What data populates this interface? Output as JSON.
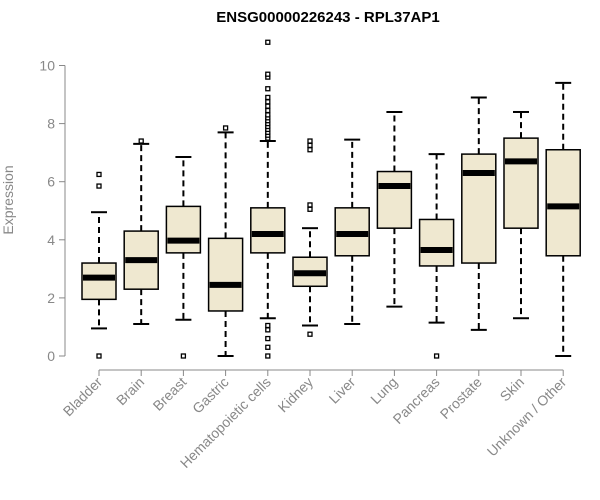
{
  "chart_data": {
    "type": "boxplot",
    "title": "ENSG00000226243 - RPL37AP1",
    "xlabel": "",
    "ylabel": "Expression",
    "ylim": [
      0,
      10.8
    ],
    "yticks": [
      0,
      2,
      4,
      6,
      8,
      10
    ],
    "colors": {
      "box_fill": "#efe8d0",
      "stroke": "#000000",
      "axis": "#888888"
    },
    "categories": [
      "Bladder",
      "Brain",
      "Breast",
      "Gastric",
      "Hematopoietic cells",
      "Kidney",
      "Liver",
      "Lung",
      "Pancreas",
      "Prostate",
      "Skin",
      "Unknown / Other"
    ],
    "boxes": [
      {
        "label": "Bladder",
        "whisker_low": 0.95,
        "q1": 1.95,
        "median": 2.7,
        "q3": 3.2,
        "whisker_high": 4.95,
        "outliers": [
          0.0,
          5.85,
          6.25
        ]
      },
      {
        "label": "Brain",
        "whisker_low": 1.1,
        "q1": 2.3,
        "median": 3.3,
        "q3": 4.3,
        "whisker_high": 7.3,
        "outliers": [
          7.4
        ]
      },
      {
        "label": "Breast",
        "whisker_low": 1.25,
        "q1": 3.55,
        "median": 3.97,
        "q3": 5.15,
        "whisker_high": 6.85,
        "outliers": [
          0.0
        ]
      },
      {
        "label": "Gastric",
        "whisker_low": 0.0,
        "q1": 1.55,
        "median": 2.45,
        "q3": 4.05,
        "whisker_high": 7.7,
        "outliers": [
          7.85
        ]
      },
      {
        "label": "Hematopoietic cells",
        "whisker_low": 1.3,
        "q1": 3.55,
        "median": 4.2,
        "q3": 5.1,
        "whisker_high": 7.4,
        "outliers": [
          0.0,
          0.3,
          0.6,
          0.9,
          1.05,
          7.5,
          7.6,
          7.7,
          7.8,
          7.9,
          8.0,
          8.1,
          8.2,
          8.3,
          8.45,
          8.6,
          8.75,
          8.9,
          9.2,
          9.6,
          9.7,
          10.8
        ]
      },
      {
        "label": "Kidney",
        "whisker_low": 1.05,
        "q1": 2.4,
        "median": 2.85,
        "q3": 3.4,
        "whisker_high": 4.4,
        "outliers": [
          0.75,
          5.05,
          5.2,
          7.1,
          7.25,
          7.4
        ]
      },
      {
        "label": "Liver",
        "whisker_low": 1.1,
        "q1": 3.45,
        "median": 4.2,
        "q3": 5.1,
        "whisker_high": 7.45,
        "outliers": []
      },
      {
        "label": "Lung",
        "whisker_low": 1.7,
        "q1": 4.4,
        "median": 5.85,
        "q3": 6.35,
        "whisker_high": 8.4,
        "outliers": []
      },
      {
        "label": "Pancreas",
        "whisker_low": 1.15,
        "q1": 3.1,
        "median": 3.65,
        "q3": 4.7,
        "whisker_high": 6.95,
        "outliers": [
          0.0
        ]
      },
      {
        "label": "Prostate",
        "whisker_low": 0.9,
        "q1": 3.2,
        "median": 6.3,
        "q3": 6.95,
        "whisker_high": 8.9,
        "outliers": []
      },
      {
        "label": "Skin",
        "whisker_low": 1.3,
        "q1": 4.4,
        "median": 6.7,
        "q3": 7.5,
        "whisker_high": 8.4,
        "outliers": []
      },
      {
        "label": "Unknown / Other",
        "whisker_low": 0.0,
        "q1": 3.45,
        "median": 5.15,
        "q3": 7.1,
        "whisker_high": 9.4,
        "outliers": []
      }
    ]
  }
}
